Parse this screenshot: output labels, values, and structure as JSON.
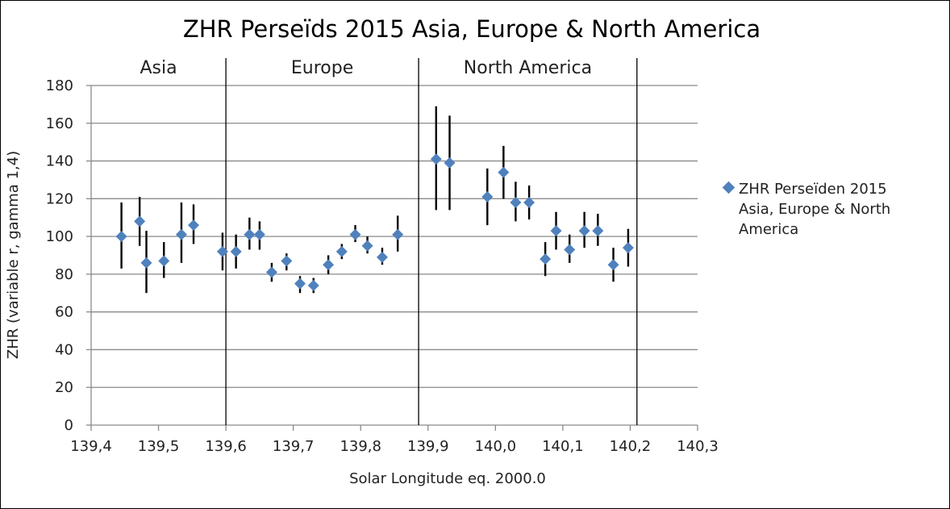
{
  "chart_data": {
    "type": "scatter",
    "title": "ZHR Perseïds 2015 Asia, Europe & North America",
    "xlabel": "Solar Longitude eq. 2000.0",
    "ylabel": "ZHR (variable r, gamma 1,4)",
    "xlim": [
      139.4,
      140.3
    ],
    "ylim": [
      0,
      180
    ],
    "x_ticks": [
      "139,4",
      "139,5",
      "139,6",
      "139,7",
      "139,8",
      "139,9",
      "140,0",
      "140,1",
      "140,2",
      "140,3"
    ],
    "y_ticks": [
      "0",
      "20",
      "40",
      "60",
      "80",
      "100",
      "120",
      "140",
      "160",
      "180"
    ],
    "grid": "horizontal",
    "legend_position": "right",
    "marker_color": "#4f81bd",
    "error_bar_color": "#000000",
    "regions": [
      {
        "label": "Asia",
        "x_start": 139.4,
        "x_end": 139.6
      },
      {
        "label": "Europe",
        "x_start": 139.6,
        "x_end": 139.886
      },
      {
        "label": "North America",
        "x_start": 139.886,
        "x_end": 140.21
      }
    ],
    "series": [
      {
        "name": "ZHR Perseïden 2015 Asia, Europe & North America",
        "points": [
          {
            "x": 139.445,
            "y": 100,
            "err_low": 83,
            "err_high": 118
          },
          {
            "x": 139.472,
            "y": 108,
            "err_low": 95,
            "err_high": 121
          },
          {
            "x": 139.482,
            "y": 86,
            "err_low": 70,
            "err_high": 103
          },
          {
            "x": 139.508,
            "y": 87,
            "err_low": 78,
            "err_high": 97
          },
          {
            "x": 139.534,
            "y": 101,
            "err_low": 86,
            "err_high": 118
          },
          {
            "x": 139.552,
            "y": 106,
            "err_low": 96,
            "err_high": 117
          },
          {
            "x": 139.595,
            "y": 92,
            "err_low": 82,
            "err_high": 102
          },
          {
            "x": 139.615,
            "y": 92,
            "err_low": 83,
            "err_high": 101
          },
          {
            "x": 139.635,
            "y": 101,
            "err_low": 93,
            "err_high": 110
          },
          {
            "x": 139.65,
            "y": 101,
            "err_low": 93,
            "err_high": 108
          },
          {
            "x": 139.668,
            "y": 81,
            "err_low": 76,
            "err_high": 86
          },
          {
            "x": 139.69,
            "y": 87,
            "err_low": 82,
            "err_high": 91
          },
          {
            "x": 139.71,
            "y": 75,
            "err_low": 70,
            "err_high": 79
          },
          {
            "x": 139.73,
            "y": 74,
            "err_low": 70,
            "err_high": 78
          },
          {
            "x": 139.752,
            "y": 85,
            "err_low": 80,
            "err_high": 90
          },
          {
            "x": 139.772,
            "y": 92,
            "err_low": 88,
            "err_high": 96
          },
          {
            "x": 139.792,
            "y": 101,
            "err_low": 97,
            "err_high": 106
          },
          {
            "x": 139.81,
            "y": 95,
            "err_low": 91,
            "err_high": 100
          },
          {
            "x": 139.832,
            "y": 89,
            "err_low": 85,
            "err_high": 94
          },
          {
            "x": 139.855,
            "y": 101,
            "err_low": 92,
            "err_high": 111
          },
          {
            "x": 139.912,
            "y": 141,
            "err_low": 114,
            "err_high": 169
          },
          {
            "x": 139.932,
            "y": 139,
            "err_low": 114,
            "err_high": 164
          },
          {
            "x": 139.988,
            "y": 121,
            "err_low": 106,
            "err_high": 136
          },
          {
            "x": 140.012,
            "y": 134,
            "err_low": 120,
            "err_high": 148
          },
          {
            "x": 140.03,
            "y": 118,
            "err_low": 108,
            "err_high": 129
          },
          {
            "x": 140.05,
            "y": 118,
            "err_low": 109,
            "err_high": 127
          },
          {
            "x": 140.074,
            "y": 88,
            "err_low": 79,
            "err_high": 97
          },
          {
            "x": 140.09,
            "y": 103,
            "err_low": 93,
            "err_high": 113
          },
          {
            "x": 140.11,
            "y": 93,
            "err_low": 86,
            "err_high": 101
          },
          {
            "x": 140.132,
            "y": 103,
            "err_low": 94,
            "err_high": 113
          },
          {
            "x": 140.152,
            "y": 103,
            "err_low": 95,
            "err_high": 112
          },
          {
            "x": 140.175,
            "y": 85,
            "err_low": 76,
            "err_high": 94
          },
          {
            "x": 140.197,
            "y": 94,
            "err_low": 84,
            "err_high": 104
          }
        ]
      }
    ]
  }
}
